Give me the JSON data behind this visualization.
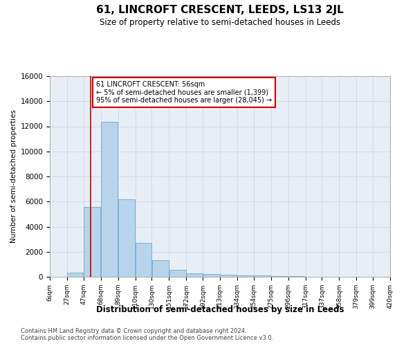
{
  "title": "61, LINCROFT CRESCENT, LEEDS, LS13 2JL",
  "subtitle": "Size of property relative to semi-detached houses in Leeds",
  "xlabel": "Distribution of semi-detached houses by size in Leeds",
  "ylabel": "Number of semi-detached properties",
  "footer1": "Contains HM Land Registry data © Crown copyright and database right 2024.",
  "footer2": "Contains public sector information licensed under the Open Government Licence v3.0.",
  "x_labels": [
    "6sqm",
    "27sqm",
    "47sqm",
    "68sqm",
    "89sqm",
    "110sqm",
    "130sqm",
    "151sqm",
    "172sqm",
    "192sqm",
    "213sqm",
    "234sqm",
    "254sqm",
    "275sqm",
    "296sqm",
    "317sqm",
    "337sqm",
    "358sqm",
    "379sqm",
    "399sqm",
    "420sqm"
  ],
  "bar_values": [
    0,
    310,
    5550,
    12380,
    6180,
    2700,
    1300,
    560,
    300,
    210,
    155,
    100,
    90,
    50,
    30,
    20,
    10,
    5,
    3,
    2,
    0
  ],
  "bar_color": "#b8d4ea",
  "bar_edge_color": "#6aaad4",
  "ylim": [
    0,
    16000
  ],
  "yticks": [
    0,
    2000,
    4000,
    6000,
    8000,
    10000,
    12000,
    14000,
    16000
  ],
  "red_line_x": 56,
  "bin_edges": [
    6,
    27,
    47,
    68,
    89,
    110,
    130,
    151,
    172,
    192,
    213,
    234,
    254,
    275,
    296,
    317,
    337,
    358,
    379,
    399,
    420
  ],
  "annotation_title": "61 LINCROFT CRESCENT: 56sqm",
  "annotation_line1": "← 5% of semi-detached houses are smaller (1,399)",
  "annotation_line2": "95% of semi-detached houses are larger (28,045) →",
  "annotation_box_color": "#ffffff",
  "annotation_box_edge_color": "#cc0000",
  "grid_color": "#c8d4e4",
  "background_color": "#e8eef6",
  "title_fontsize": 11,
  "subtitle_fontsize": 9
}
